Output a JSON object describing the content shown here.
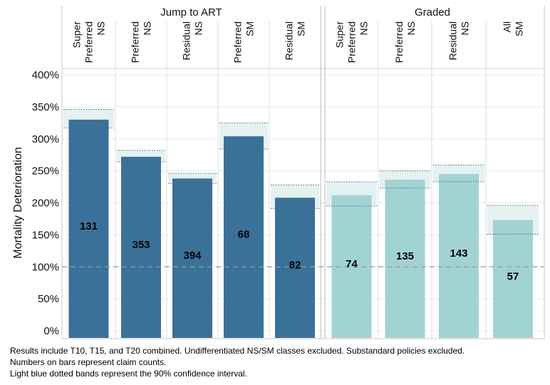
{
  "chart_data": {
    "type": "bar",
    "ylabel": "Mortality Deterioration",
    "yticks": [
      "0%",
      "50%",
      "100%",
      "150%",
      "200%",
      "250%",
      "300%",
      "350%",
      "400%"
    ],
    "ylim": [
      0,
      400
    ],
    "reference_line": 100,
    "groups": [
      {
        "name": "Jump to ART",
        "color": "#3a7199",
        "bars": [
          {
            "category": "Super Preferred NS",
            "value": 330,
            "ci": [
              317,
              346
            ],
            "count": "131"
          },
          {
            "category": "Preferred NS",
            "value": 272,
            "ci": [
              264,
              282
            ],
            "count": "353"
          },
          {
            "category": "Residual NS",
            "value": 238,
            "ci": [
              230,
              246
            ],
            "count": "394"
          },
          {
            "category": "Preferred SM",
            "value": 304,
            "ci": [
              284,
              325
            ],
            "count": "68"
          },
          {
            "category": "Residual SM",
            "value": 208,
            "ci": [
              191,
              228
            ],
            "count": "82"
          }
        ]
      },
      {
        "name": "Graded",
        "color": "#a2d3d3",
        "bars": [
          {
            "category": "Super Preferred NS",
            "value": 212,
            "ci": [
              195,
              233
            ],
            "count": "74"
          },
          {
            "category": "Preferred NS",
            "value": 236,
            "ci": [
              223,
              250
            ],
            "count": "135"
          },
          {
            "category": "Residual NS",
            "value": 245,
            "ci": [
              233,
              259
            ],
            "count": "143"
          },
          {
            "category": "All SM",
            "value": 173,
            "ci": [
              151,
              196
            ],
            "count": "57"
          }
        ]
      }
    ]
  },
  "notes": [
    "Results include T10, T15, and T20 combined. Undifferentiated NS/SM classes excluded. Substandard policies excluded.",
    "Numbers on bars represent claim counts.",
    "Light blue dotted bands represent the 90% confidence interval."
  ]
}
